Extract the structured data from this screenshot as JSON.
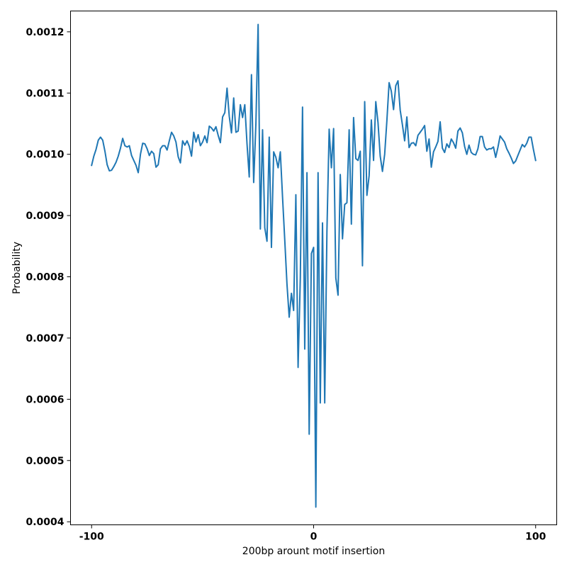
{
  "chart_data": {
    "type": "line",
    "title": "",
    "xlabel": "200bp arount motif insertion",
    "ylabel": "Probability",
    "xlim": [
      -109.5,
      109.5
    ],
    "ylim": [
      0.000395,
      0.001234
    ],
    "xticks": [
      -100,
      0,
      100
    ],
    "xtick_labels": [
      "-100",
      "0",
      "100"
    ],
    "yticks": [
      0.0004,
      0.0005,
      0.0006,
      0.0007,
      0.0008,
      0.0009,
      0.001,
      0.0011,
      0.0012
    ],
    "ytick_labels": [
      "0.0004",
      "0.0005",
      "0.0006",
      "0.0007",
      "0.0008",
      "0.0009",
      "0.0010",
      "0.0011",
      "0.0012"
    ],
    "grid": false,
    "line_color": "#1f77b4",
    "x_start": -100,
    "x_step": 1,
    "values": [
      0.000982,
      0.000997,
      0.001008,
      0.001023,
      0.001028,
      0.001023,
      0.001005,
      0.000983,
      0.000973,
      0.000974,
      0.00098,
      0.000987,
      0.000997,
      0.00101,
      0.001026,
      0.001014,
      0.001012,
      0.001014,
      0.000998,
      0.00099,
      0.000982,
      0.00097,
      0.001,
      0.001018,
      0.001017,
      0.001009,
      0.000998,
      0.001005,
      0.001001,
      0.000979,
      0.000983,
      0.001009,
      0.001014,
      0.001014,
      0.001007,
      0.001022,
      0.001036,
      0.00103,
      0.00102,
      0.000996,
      0.000986,
      0.001022,
      0.001015,
      0.001022,
      0.001013,
      0.000997,
      0.001036,
      0.00102,
      0.001032,
      0.001014,
      0.00102,
      0.00103,
      0.001019,
      0.001046,
      0.001043,
      0.001038,
      0.001045,
      0.001031,
      0.001019,
      0.001061,
      0.001068,
      0.001108,
      0.001062,
      0.001035,
      0.001092,
      0.001036,
      0.001038,
      0.001081,
      0.00106,
      0.001081,
      0.001017,
      0.000963,
      0.00113,
      0.000954,
      0.00105,
      0.001212,
      0.000878,
      0.00104,
      0.00088,
      0.000858,
      0.001028,
      0.000848,
      0.001004,
      0.000995,
      0.000978,
      0.001004,
      0.00093,
      0.00086,
      0.000788,
      0.000734,
      0.000773,
      0.000745,
      0.000934,
      0.000652,
      0.000797,
      0.001077,
      0.000682,
      0.00097,
      0.000543,
      0.000838,
      0.000848,
      0.000424,
      0.00097,
      0.000594,
      0.000888,
      0.000594,
      0.000875,
      0.001041,
      0.000978,
      0.001042,
      0.000798,
      0.00077,
      0.000967,
      0.000862,
      0.000918,
      0.000921,
      0.00104,
      0.000886,
      0.00106,
      0.000993,
      0.00099,
      0.001005,
      0.000818,
      0.001086,
      0.000933,
      0.000965,
      0.001056,
      0.00099,
      0.001086,
      0.001052,
      0.000997,
      0.000972,
      0.001,
      0.001055,
      0.001117,
      0.001103,
      0.001073,
      0.001112,
      0.00112,
      0.001072,
      0.001048,
      0.001022,
      0.001061,
      0.001011,
      0.001018,
      0.001019,
      0.001014,
      0.001031,
      0.001036,
      0.001041,
      0.001047,
      0.001005,
      0.001025,
      0.000979,
      0.001004,
      0.001012,
      0.001021,
      0.001053,
      0.00101,
      0.001003,
      0.001017,
      0.001011,
      0.001025,
      0.001019,
      0.00101,
      0.001038,
      0.001043,
      0.001035,
      0.001013,
      0.001,
      0.001015,
      0.001003,
      0.001,
      0.000999,
      0.001009,
      0.001029,
      0.001029,
      0.001012,
      0.001007,
      0.001009,
      0.001009,
      0.001012,
      0.000995,
      0.001011,
      0.00103,
      0.001025,
      0.00102,
      0.001009,
      0.001002,
      0.000994,
      0.000985,
      0.000989,
      0.000998,
      0.001007,
      0.001016,
      0.001012,
      0.001018,
      0.001028,
      0.001028,
      0.001008,
      0.00099
    ]
  }
}
